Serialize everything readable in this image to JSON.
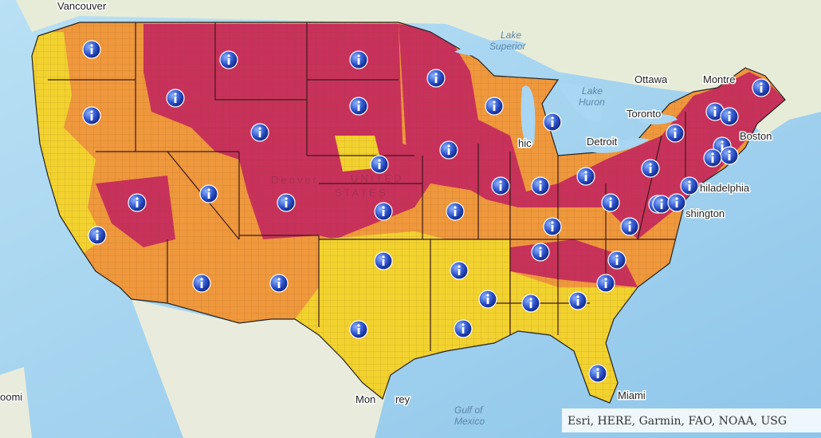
{
  "map": {
    "labels": {
      "vancouver": "Vancouver",
      "lake_superior_1": "Lake",
      "lake_superior_2": "Superior",
      "ottawa": "Ottawa",
      "montreal": "Montre",
      "lake_huron_1": "Lake",
      "lake_huron_2": "Huron",
      "toronto": "Toronto",
      "detroit": "Detroit",
      "boston": "Boston",
      "philadelphia": "hiladelphia",
      "washington": "shington",
      "chicago": "hic",
      "denver": "Denver",
      "united": "UNITED",
      "states": "STATES",
      "miami": "Miami",
      "gulf_1": "Gulf of",
      "gulf_2": "Mexico",
      "monterrey_1": "Mon",
      "monterrey_2": "rey",
      "left_edge": "oomi"
    },
    "attribution": "Esri, HERE, Garmin, FAO, NOAA, USG"
  }
}
